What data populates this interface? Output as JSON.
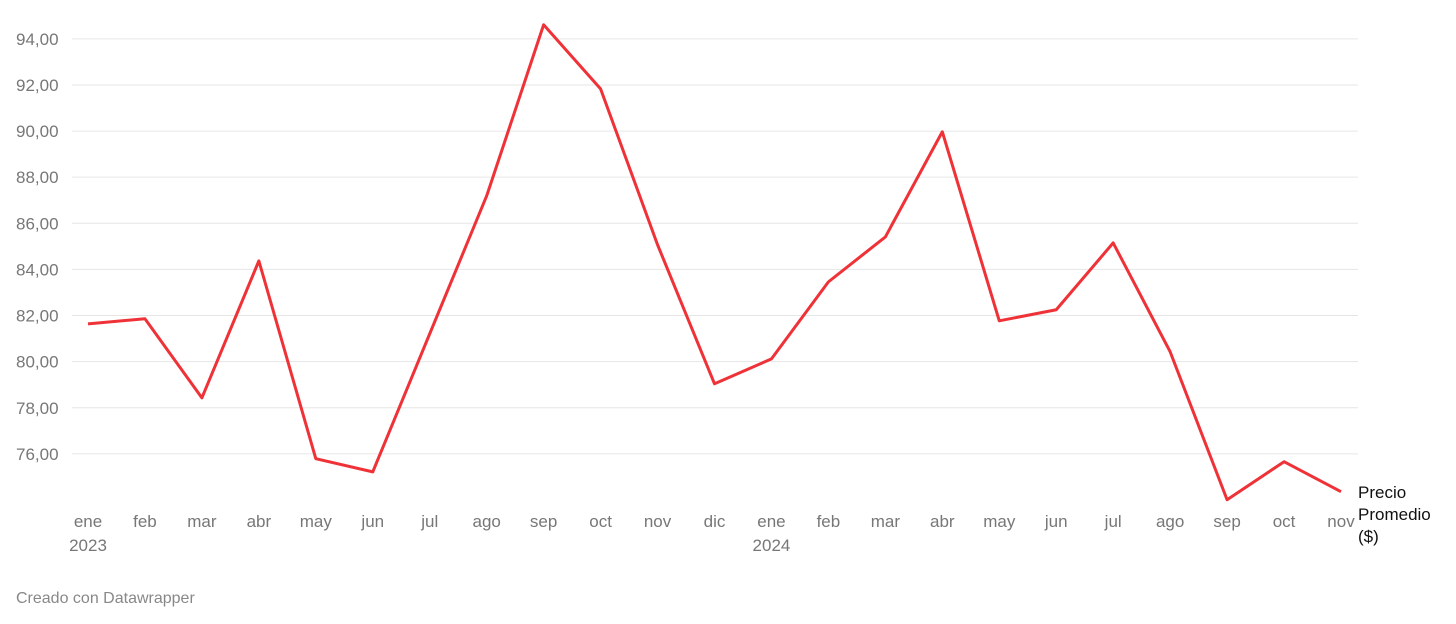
{
  "chart_data": {
    "type": "line",
    "categories": [
      "ene 2023",
      "feb",
      "mar",
      "abr",
      "may",
      "jun",
      "jul",
      "ago",
      "sep",
      "oct",
      "nov",
      "dic",
      "ene 2024",
      "feb",
      "mar",
      "abr",
      "may",
      "jun",
      "jul",
      "ago",
      "sep",
      "oct",
      "nov"
    ],
    "series": [
      {
        "name": "Precio Promedio ($)",
        "color": "#ef3237",
        "values": [
          81.64,
          81.86,
          78.43,
          84.37,
          75.79,
          75.22,
          81.21,
          87.19,
          94.61,
          91.83,
          85.07,
          79.04,
          80.12,
          83.46,
          85.41,
          89.97,
          81.77,
          82.25,
          85.15,
          80.43,
          74.01,
          75.66,
          74.36
        ]
      }
    ],
    "ylim": [
      74,
      94.6
    ],
    "yticks": [
      {
        "value": 76,
        "label": "76,00"
      },
      {
        "value": 78,
        "label": "78,00"
      },
      {
        "value": 80,
        "label": "80,00"
      },
      {
        "value": 82,
        "label": "82,00"
      },
      {
        "value": 84,
        "label": "84,00"
      },
      {
        "value": 86,
        "label": "86,00"
      },
      {
        "value": 88,
        "label": "88,00"
      },
      {
        "value": 90,
        "label": "90,00"
      },
      {
        "value": 92,
        "label": "92,00"
      },
      {
        "value": 94,
        "label": "94,00"
      }
    ],
    "grid": true,
    "footer": "Creado con Datawrapper"
  }
}
